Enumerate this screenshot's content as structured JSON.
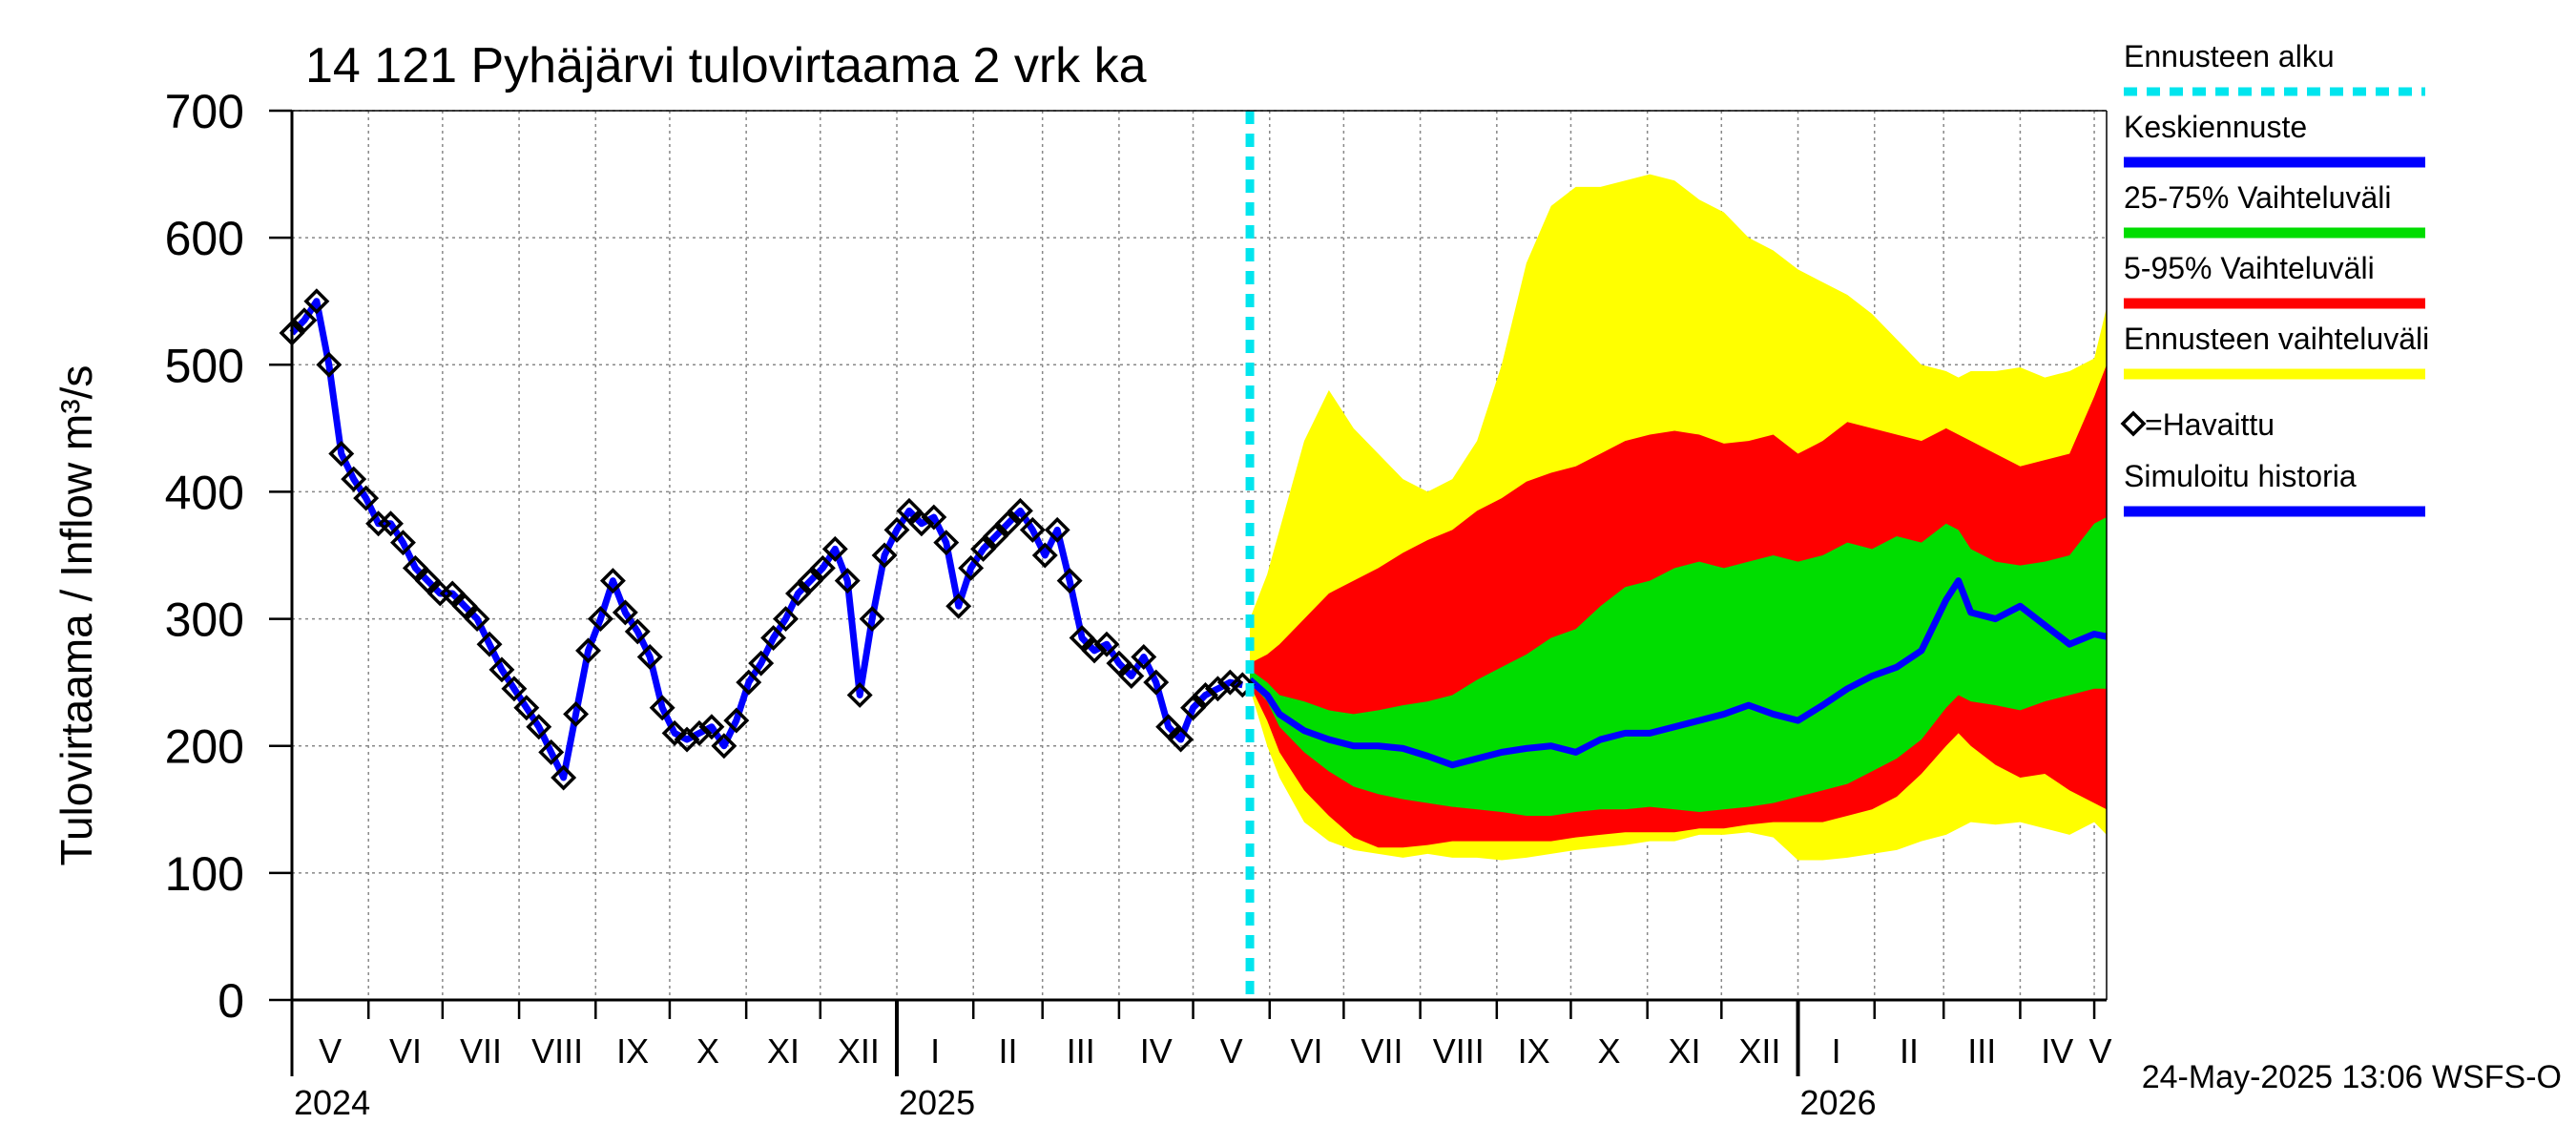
{
  "chart_data": {
    "type": "area",
    "title": "14 121 Pyhäjärvi tulovirtaama 2 vrk ka",
    "ylabel": "Tulovirtaama / Inflow    m³/s",
    "xlabel": "",
    "ylim": [
      0,
      700
    ],
    "yticks": [
      0,
      100,
      200,
      300,
      400,
      500,
      600,
      700
    ],
    "ytick_labels": [
      "0",
      "100",
      "200",
      "300",
      "400",
      "500",
      "600",
      "700"
    ],
    "x_range_days": [
      0,
      735
    ],
    "month_labels": [
      "V",
      "VI",
      "VII",
      "VIII",
      "IX",
      "X",
      "XI",
      "XII",
      "I",
      "II",
      "III",
      "IV",
      "V",
      "VI",
      "VII",
      "VIII",
      "IX",
      "X",
      "XI",
      "XII",
      "I",
      "II",
      "III",
      "IV",
      "V"
    ],
    "month_starts_days": [
      0,
      31,
      61,
      92,
      123,
      153,
      184,
      214,
      245,
      276,
      304,
      335,
      365,
      396,
      426,
      457,
      488,
      518,
      549,
      579,
      610,
      641,
      669,
      700,
      730
    ],
    "year_labels": [
      {
        "label": "2024",
        "day": 0
      },
      {
        "label": "2025",
        "day": 245
      },
      {
        "label": "2026",
        "day": 610
      }
    ],
    "forecast_start_day": 388,
    "legend": [
      {
        "label": "Ennusteen alku",
        "color": "#00e5ee",
        "style": "dashed"
      },
      {
        "label": "Keskiennuste",
        "color": "#0000ff",
        "style": "line"
      },
      {
        "label": "25-75% Vaihteluväli",
        "color": "#00dd00",
        "style": "band"
      },
      {
        "label": "5-95% Vaihteluväli",
        "color": "#ff0000",
        "style": "band"
      },
      {
        "label": "Ennusteen vaihteluväli",
        "color": "#ffff00",
        "style": "band"
      },
      {
        "label": "=Havaittu",
        "color": "#000000",
        "style": "marker"
      },
      {
        "label": "Simuloitu historia",
        "color": "#0000ff",
        "style": "line"
      }
    ],
    "timestamp": "24-May-2025 13:06 WSFS-O",
    "series": [
      {
        "name": "Havaittu",
        "x": [
          0,
          5,
          10,
          15,
          20,
          25,
          30,
          35,
          40,
          45,
          50,
          55,
          60,
          65,
          70,
          75,
          80,
          85,
          90,
          95,
          100,
          105,
          110,
          115,
          120,
          125,
          130,
          135,
          140,
          145,
          150,
          155,
          160,
          165,
          170,
          175,
          180,
          185,
          190,
          195,
          200,
          205,
          210,
          215,
          220,
          225,
          230,
          235,
          240,
          245,
          250,
          255,
          260,
          265,
          270,
          275,
          280,
          285,
          290,
          295,
          300,
          305,
          310,
          315,
          320,
          325,
          330,
          335,
          340,
          345,
          350,
          355,
          360,
          365,
          370,
          375,
          380,
          385
        ],
        "values": [
          525,
          535,
          550,
          500,
          430,
          410,
          395,
          375,
          375,
          360,
          340,
          330,
          320,
          320,
          310,
          300,
          280,
          260,
          245,
          230,
          215,
          195,
          175,
          225,
          275,
          300,
          330,
          305,
          290,
          270,
          230,
          210,
          205,
          210,
          215,
          200,
          220,
          250,
          265,
          285,
          300,
          320,
          330,
          340,
          355,
          330,
          240,
          300,
          350,
          370,
          385,
          375,
          380,
          360,
          310,
          340,
          355,
          365,
          375,
          385,
          370,
          350,
          370,
          330,
          285,
          275,
          280,
          265,
          255,
          270,
          250,
          215,
          205,
          230,
          240,
          245,
          250,
          248
        ]
      },
      {
        "name": "Keskiennuste",
        "x": [
          388,
          395,
          400,
          410,
          420,
          430,
          440,
          450,
          460,
          470,
          480,
          490,
          500,
          510,
          520,
          530,
          540,
          550,
          560,
          570,
          580,
          590,
          600,
          610,
          620,
          630,
          640,
          650,
          660,
          670,
          675,
          680,
          690,
          700,
          710,
          720,
          730,
          735
        ],
        "values": [
          252,
          240,
          225,
          212,
          205,
          200,
          200,
          198,
          192,
          185,
          190,
          195,
          198,
          200,
          195,
          205,
          210,
          210,
          215,
          220,
          225,
          232,
          225,
          220,
          232,
          245,
          255,
          262,
          275,
          315,
          330,
          305,
          300,
          310,
          295,
          280,
          288,
          286
        ]
      },
      {
        "name": "25-75% Vaihteluväli",
        "x": [
          388,
          395,
          400,
          410,
          420,
          430,
          440,
          450,
          460,
          470,
          480,
          490,
          500,
          510,
          520,
          530,
          540,
          550,
          560,
          570,
          580,
          590,
          600,
          610,
          620,
          630,
          640,
          650,
          660,
          670,
          675,
          680,
          690,
          700,
          710,
          720,
          730,
          735
        ],
        "low": [
          250,
          235,
          215,
          195,
          180,
          168,
          162,
          158,
          155,
          152,
          150,
          148,
          145,
          145,
          148,
          150,
          150,
          152,
          150,
          148,
          150,
          152,
          155,
          160,
          165,
          170,
          180,
          190,
          205,
          230,
          240,
          235,
          232,
          228,
          235,
          240,
          245,
          245
        ],
        "high": [
          260,
          250,
          240,
          235,
          228,
          225,
          228,
          232,
          235,
          240,
          252,
          262,
          272,
          285,
          292,
          310,
          325,
          330,
          340,
          345,
          340,
          345,
          350,
          345,
          350,
          360,
          355,
          365,
          360,
          375,
          370,
          355,
          345,
          342,
          345,
          350,
          375,
          380
        ]
      },
      {
        "name": "5-95% Vaihteluväli",
        "x": [
          388,
          395,
          400,
          410,
          420,
          430,
          440,
          450,
          460,
          470,
          480,
          490,
          500,
          510,
          520,
          530,
          540,
          550,
          560,
          570,
          580,
          590,
          600,
          610,
          620,
          630,
          640,
          650,
          660,
          670,
          675,
          680,
          690,
          700,
          710,
          720,
          730,
          735
        ],
        "low": [
          248,
          220,
          195,
          165,
          145,
          128,
          120,
          120,
          122,
          125,
          125,
          125,
          125,
          125,
          128,
          130,
          132,
          132,
          132,
          135,
          135,
          138,
          140,
          140,
          140,
          145,
          150,
          160,
          178,
          200,
          210,
          200,
          185,
          175,
          178,
          165,
          155,
          150
        ],
        "high": [
          265,
          272,
          280,
          300,
          320,
          330,
          340,
          352,
          362,
          370,
          385,
          395,
          408,
          415,
          420,
          430,
          440,
          445,
          448,
          445,
          438,
          440,
          445,
          430,
          440,
          455,
          450,
          445,
          440,
          450,
          445,
          440,
          430,
          420,
          425,
          430,
          475,
          500
        ]
      },
      {
        "name": "Ennusteen vaihteluväli",
        "x": [
          388,
          395,
          400,
          410,
          420,
          430,
          440,
          450,
          460,
          470,
          480,
          490,
          500,
          510,
          520,
          530,
          540,
          550,
          560,
          570,
          580,
          590,
          600,
          610,
          620,
          630,
          640,
          650,
          660,
          670,
          675,
          680,
          690,
          700,
          710,
          720,
          730,
          735
        ],
        "low": [
          245,
          200,
          175,
          140,
          125,
          118,
          115,
          112,
          115,
          112,
          112,
          110,
          112,
          115,
          118,
          120,
          122,
          125,
          125,
          130,
          130,
          132,
          128,
          110,
          110,
          112,
          115,
          118,
          125,
          130,
          135,
          140,
          138,
          140,
          135,
          130,
          140,
          130
        ],
        "high": [
          300,
          335,
          370,
          440,
          480,
          450,
          430,
          410,
          400,
          410,
          440,
          500,
          580,
          625,
          640,
          640,
          645,
          650,
          645,
          630,
          620,
          600,
          590,
          575,
          565,
          555,
          540,
          520,
          500,
          495,
          490,
          495,
          495,
          498,
          490,
          495,
          505,
          545
        ]
      }
    ]
  }
}
